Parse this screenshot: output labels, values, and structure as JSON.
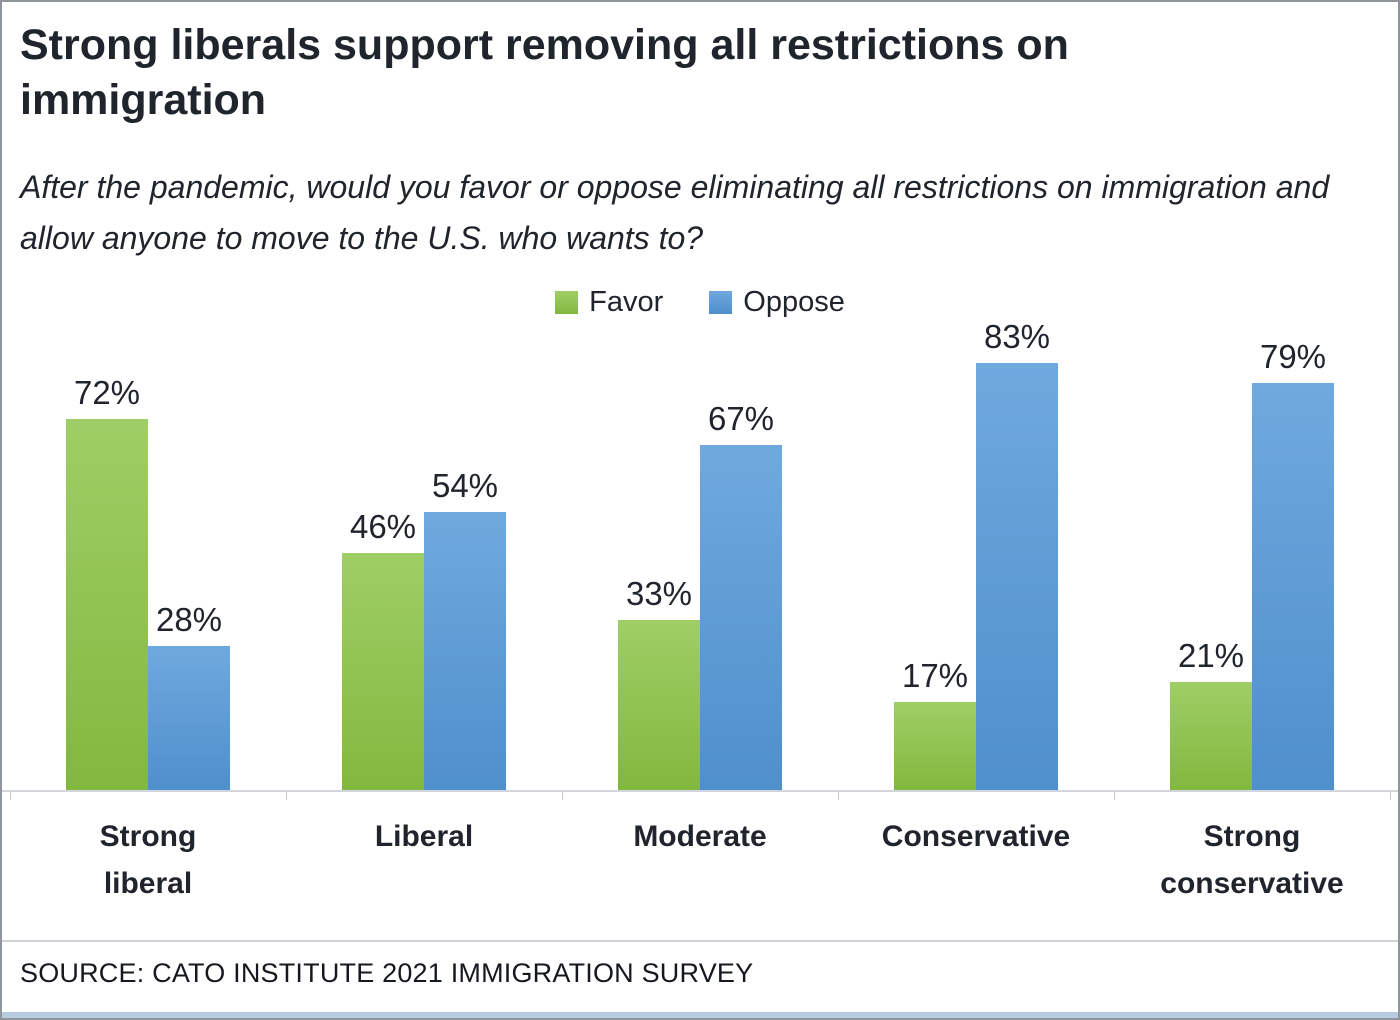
{
  "chart": {
    "title": "Strong liberals support removing all restrictions on immigration",
    "subtitle": "After the pandemic, would you favor or oppose eliminating all restrictions on immigration and allow anyone to move to the U.S. who wants to?",
    "source": "SOURCE: CATO INSTITUTE 2021 IMMIGRATION SURVEY",
    "colors": {
      "title_text": "#20242c",
      "axis_line": "#d2d5d9",
      "bottom_accent": "#b7cce0"
    }
  },
  "chart_data": {
    "type": "bar",
    "categories": [
      "Strong liberal",
      "Liberal",
      "Moderate",
      "Conservative",
      "Strong conservative"
    ],
    "series": [
      {
        "name": "Favor",
        "color": "#8cc152",
        "color_top": "#9fce66",
        "color_bottom": "#82b83e",
        "values": [
          72,
          46,
          33,
          17,
          21
        ]
      },
      {
        "name": "Oppose",
        "color": "#5b9bd5",
        "color_top": "#6fa9de",
        "color_bottom": "#4f8fcc",
        "values": [
          28,
          54,
          67,
          83,
          79
        ]
      }
    ],
    "value_suffix": "%",
    "ylim": [
      0,
      100
    ],
    "legend_position": "top-center",
    "grid": false,
    "value_labels": true
  }
}
